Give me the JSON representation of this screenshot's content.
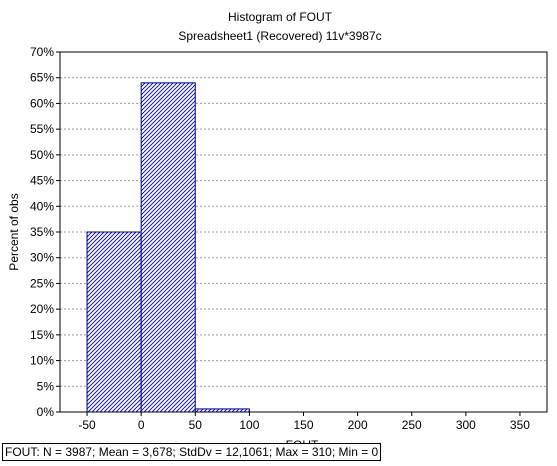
{
  "chart_data": {
    "type": "bar",
    "title": "Histogram of FOUT",
    "subtitle": "Spreadsheet1  (Recovered) 11v*3987c",
    "xlabel": "FOUT",
    "ylabel": "Percent of obs",
    "bins": [
      {
        "start": -50,
        "end": 0,
        "value": 35
      },
      {
        "start": 0,
        "end": 50,
        "value": 64
      },
      {
        "start": 50,
        "end": 100,
        "value": 0.6
      }
    ],
    "xlim": [
      -75,
      375
    ],
    "ylim": [
      0,
      70
    ],
    "x_ticks": [
      "-50",
      "0",
      "50",
      "100",
      "150",
      "200",
      "250",
      "300",
      "350"
    ],
    "y_ticks": [
      "0%",
      "5%",
      "10%",
      "15%",
      "20%",
      "25%",
      "30%",
      "35%",
      "40%",
      "45%",
      "50%",
      "55%",
      "60%",
      "65%",
      "70%"
    ],
    "grid": true,
    "bar_color": "#00008b",
    "caption": "FOUT:   N = 3987; Mean = 3,678; StdDv = 12,1061; Max = 310; Min = 0"
  }
}
